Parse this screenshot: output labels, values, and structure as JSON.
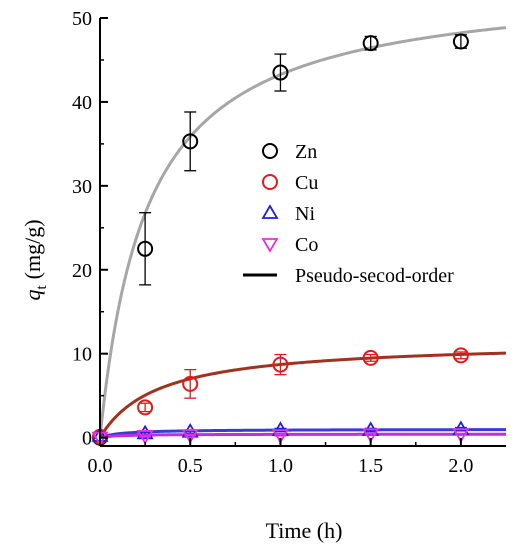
{
  "chart_data": {
    "type": "scatter",
    "xlabel": "Time (h)",
    "ylabel": {
      "main": "q",
      "sub": "t",
      "unit": "(mg/g)"
    },
    "xlim": [
      0,
      2.25
    ],
    "ylim": [
      -1,
      50
    ],
    "xticks": [
      "0.0",
      "0.5",
      "1.0",
      "1.5",
      "2.0"
    ],
    "yticks": [
      "0",
      "10",
      "20",
      "30",
      "40",
      "50"
    ],
    "legend_position": "center-right",
    "series": [
      {
        "name": "Zn",
        "marker": "circle",
        "color": "#000000",
        "x": [
          0,
          0.25,
          0.5,
          1.0,
          1.5,
          2.0
        ],
        "y": [
          0,
          22.5,
          35.3,
          43.5,
          47.0,
          47.2
        ],
        "err": [
          0,
          4.3,
          3.5,
          2.2,
          0.8,
          0.8
        ]
      },
      {
        "name": "Cu",
        "marker": "circle",
        "color": "#e31a1c",
        "x": [
          0,
          0.25,
          0.5,
          1.0,
          1.5,
          2.0
        ],
        "y": [
          0.1,
          3.6,
          6.4,
          8.7,
          9.5,
          9.8
        ],
        "err": [
          0,
          0.5,
          1.7,
          1.2,
          0.4,
          0.4
        ]
      },
      {
        "name": "Ni",
        "marker": "triangle-up",
        "color": "#1f1fdd",
        "x": [
          0,
          0.25,
          0.5,
          1.0,
          1.5,
          2.0
        ],
        "y": [
          0.2,
          0.5,
          0.7,
          0.9,
          0.9,
          1.0
        ],
        "err": [
          0,
          0.2,
          0.2,
          0.2,
          0.2,
          0.2
        ]
      },
      {
        "name": "Co",
        "marker": "triangle-down",
        "color": "#e62ee6",
        "x": [
          0,
          0.25,
          0.5,
          1.0,
          1.5,
          2.0
        ],
        "y": [
          0.0,
          0.2,
          0.3,
          0.3,
          0.4,
          0.4
        ],
        "err": [
          0,
          0.1,
          0.1,
          0.1,
          0.1,
          0.1
        ]
      },
      {
        "name": "Pseudo-secod-order",
        "marker": "line",
        "color": "#000000"
      }
    ],
    "fit_curves": [
      {
        "for": "Zn",
        "qe": 54.5,
        "t_half": 0.26,
        "color": "#a6a6a6"
      },
      {
        "for": "Cu",
        "qe": 11.5,
        "t_half": 0.32,
        "color": "#a0331f"
      },
      {
        "for": "Ni",
        "qe": 1.0,
        "t_half": 0.12,
        "color": "#3a3ad6"
      },
      {
        "for": "Co",
        "qe": 0.42,
        "t_half": 0.1,
        "color": "#c02ee0"
      }
    ]
  }
}
